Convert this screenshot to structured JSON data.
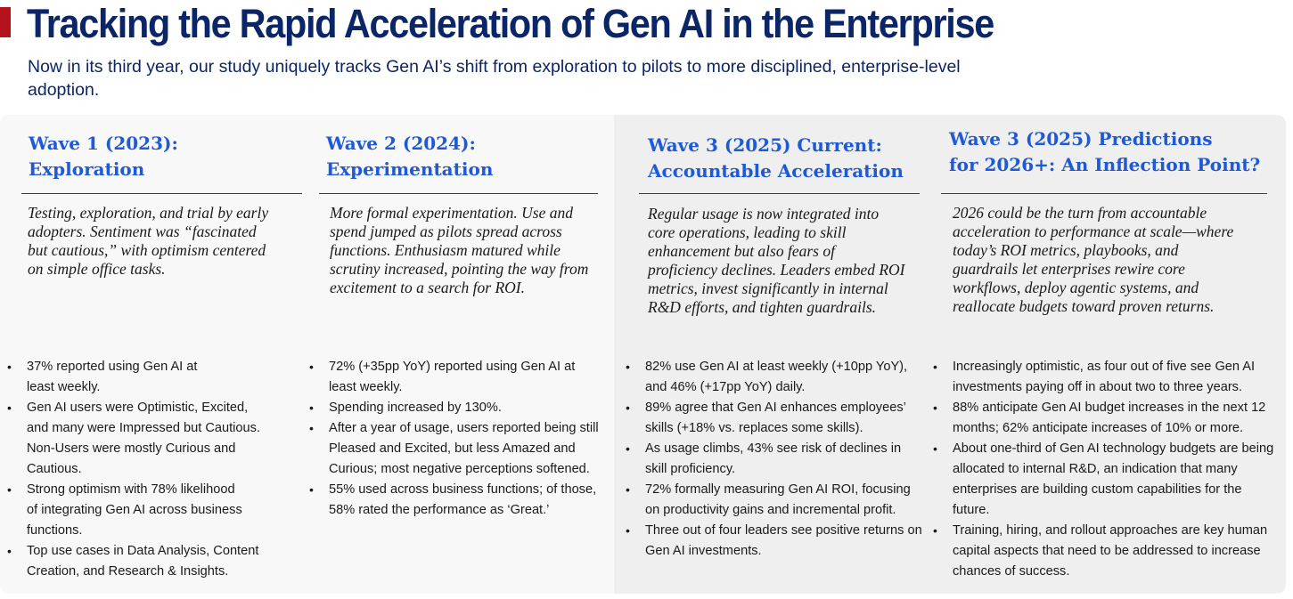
{
  "title": "Tracking the Rapid Acceleration of Gen AI in the Enterprise",
  "subtitle": "Now in its third year, our study uniquely tracks Gen AI’s shift from exploration to pilots to more disciplined, enterprise-level adoption.",
  "colors": {
    "title": "#0b2569",
    "heading": "#1f5ad6",
    "accent": "#b5121b"
  },
  "waves": [
    {
      "heading_line1": "Wave 1 (2023):",
      "heading_line2": "Exploration",
      "description": "Testing, exploration, and trial by early adopters. Sentiment was “fascinated but cautious,” with optimism centered on simple office tasks.",
      "bullets": [
        "37% reported using Gen AI at least weekly.",
        "Gen AI users were Optimistic, Excited, and many were Impressed but Cautious. Non-Users were mostly Curious and Cautious.",
        "Strong optimism with 78% likelihood of integrating Gen AI across business functions.",
        "Top use cases in Data Analysis, Content Creation, and Research & Insights."
      ]
    },
    {
      "heading_line1": "Wave 2 (2024):",
      "heading_line2": "Experimentation",
      "description": "More formal experimentation. Use and spend jumped as pilots spread across functions. Enthusiasm matured while scrutiny increased, pointing the way from excitement to a search for ROI.",
      "bullets": [
        "72% (+35pp YoY) reported using Gen AI at least weekly.",
        "Spending increased by 130%.",
        "After a year of usage, users reported being still Pleased and Excited, but less Amazed and Curious; most negative perceptions softened.",
        "55% used across business functions; of those, 58% rated the performance as ‘Great.’"
      ]
    },
    {
      "heading_line1": "Wave 3 (2025) Current:",
      "heading_line2": "Accountable Acceleration",
      "description": "Regular usage is now integrated into core operations, leading to skill enhancement but also fears of proficiency declines. Leaders embed ROI metrics, invest significantly in internal R&D efforts, and tighten guardrails.",
      "bullets": [
        "82% use Gen AI at least weekly (+10pp YoY), and 46% (+17pp YoY) daily.",
        "89% agree that Gen AI enhances employees’ skills (+18% vs. replaces some skills).",
        "As usage climbs, 43% see risk of declines in skill proficiency.",
        "72% formally measuring Gen AI ROI, focusing on productivity gains and incremental profit.",
        "Three out of four leaders see positive returns on Gen AI investments."
      ]
    },
    {
      "heading_line1": "Wave 3 (2025) Predictions",
      "heading_line2": "for 2026+: An Inflection Point?",
      "description": "2026 could be the turn from accountable acceleration to performance at scale—where today’s ROI metrics, playbooks, and guardrails let enterprises rewire core workflows, deploy agentic systems, and reallocate budgets toward proven returns.",
      "bullets": [
        "Increasingly optimistic, as four out of five see Gen AI investments paying off in about two to three years.",
        "88% anticipate Gen AI budget increases in the next 12 months; 62% anticipate increases of 10% or more.",
        "About one-third of Gen AI technology budgets are being allocated to internal R&D, an indication that many enterprises are building custom capabilities for the future.",
        "Training, hiring, and rollout approaches are key human capital aspects that need to be addressed to increase chances of success."
      ]
    }
  ]
}
